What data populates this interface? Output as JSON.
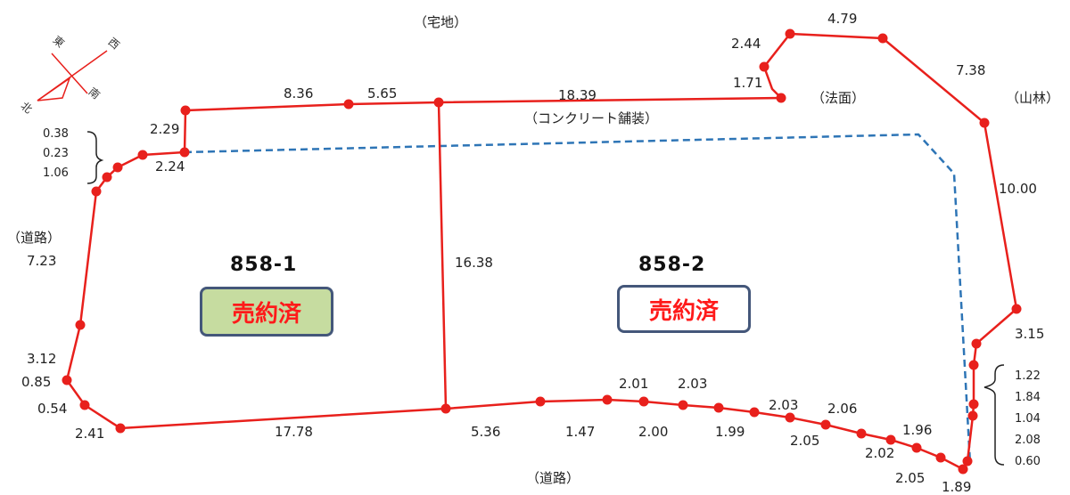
{
  "area_labels": {
    "takuchi": "（宅地）",
    "houmen": "（法面）",
    "sanrin": "（山林）",
    "concrete": "（コンクリート舗装）",
    "road_left": "（道路）",
    "road_bottom": "（道路）"
  },
  "parcels": [
    {
      "id": "858-1",
      "status": "売約済"
    },
    {
      "id": "858-2",
      "status": "売約済"
    }
  ],
  "compass": {
    "north": "北",
    "south": "南",
    "east": "東",
    "west": "西"
  },
  "distances": {
    "top_836": "8.36",
    "top_565": "5.65",
    "top_1839": "18.39",
    "nw_171": "1.71",
    "nw_244": "2.44",
    "top_479": "4.79",
    "ne_738": "7.38",
    "e_1000": "10.00",
    "e_315": "3.15",
    "tl_229": "2.29",
    "tl_224": "2.24",
    "tl_038": "0.38",
    "tl_023": "0.23",
    "tl_106": "1.06",
    "left_723": "7.23",
    "left_312": "3.12",
    "left_085": "0.85",
    "left_054": "0.54",
    "bl_241": "2.41",
    "bot_1778": "17.78",
    "bot_536": "5.36",
    "bot_147": "1.47",
    "bot_201": "2.01",
    "bot_203a": "2.03",
    "bot_200": "2.00",
    "bot_199": "1.99",
    "bot_203b": "2.03",
    "bot_206": "2.06",
    "bot_205a": "2.05",
    "bot_196": "1.96",
    "bot_202": "2.02",
    "bot_205b": "2.05",
    "bot_189": "1.89",
    "mid_1638": "16.38",
    "r_122": "1.22",
    "r_184": "1.84",
    "r_104": "1.04",
    "r_208": "2.08",
    "r_060": "0.60"
  },
  "colors": {
    "boundary": "#e8201c",
    "dashed": "#2e75b6",
    "sold_text": "#ff1a1a"
  }
}
